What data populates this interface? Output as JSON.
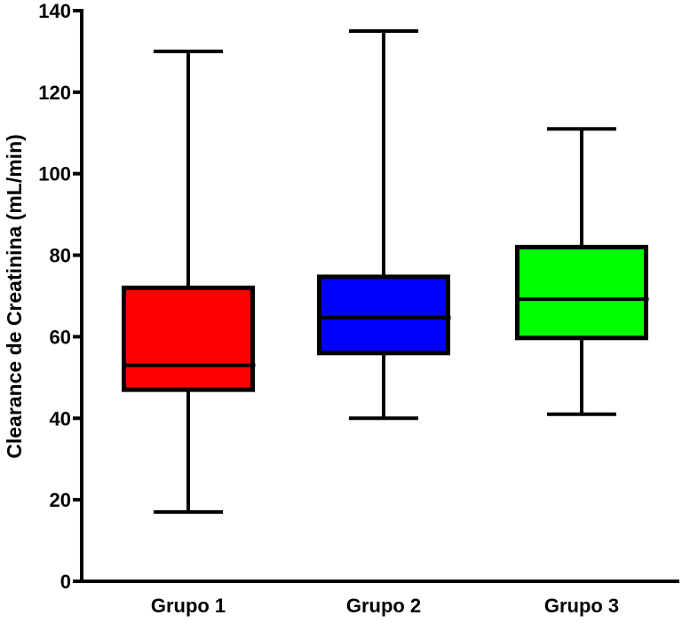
{
  "chart_data": {
    "type": "box",
    "title": "",
    "xlabel": "",
    "ylabel": "Clearance de Creatinina (mL/min)",
    "ylim": [
      0,
      140
    ],
    "yticks": [
      0,
      20,
      40,
      60,
      80,
      100,
      120,
      140
    ],
    "grid": false,
    "categories": [
      "Grupo 1",
      "Grupo 2",
      "Grupo 3"
    ],
    "boxes": [
      {
        "category": "Grupo 1",
        "min": 17,
        "q1": 47,
        "median": 53,
        "q3": 72,
        "max": 130,
        "color": "#ff0000"
      },
      {
        "category": "Grupo 2",
        "min": 40,
        "q1": 56,
        "median": 64.7,
        "q3": 74.7,
        "max": 135,
        "color": "#0000ff"
      },
      {
        "category": "Grupo 3",
        "min": 41,
        "q1": 59.7,
        "median": 69.2,
        "q3": 82,
        "max": 111,
        "color": "#00ff00"
      }
    ]
  }
}
